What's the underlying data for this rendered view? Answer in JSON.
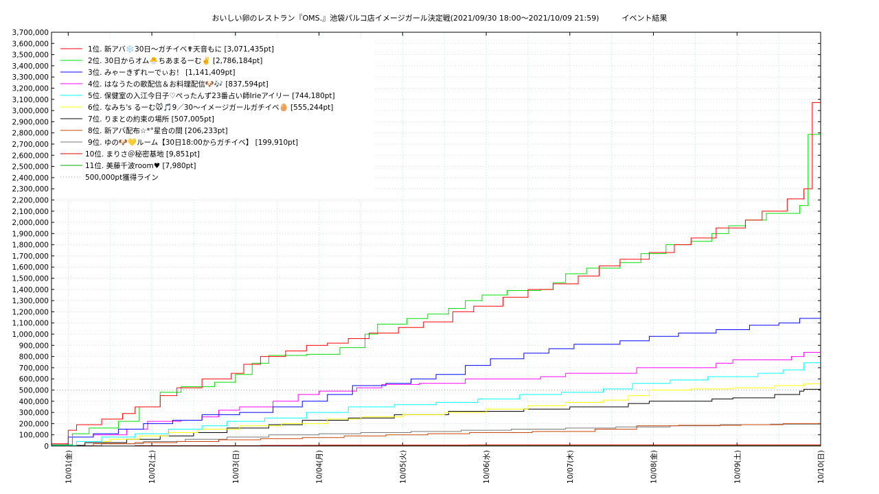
{
  "chart_data": {
    "type": "line",
    "title": "おいしい卵のレストラン『OMS.』池袋パルコ店イメージガール決定戦(2021/09/30 18:00～2021/10/09 21:59)　　　イベント結果",
    "xlabel": "",
    "ylabel": "",
    "ylim": [
      0,
      3700000
    ],
    "xlim": [
      "09/30 18:00",
      "10/10 00:00"
    ],
    "y_ticks": [
      "3,700,000",
      "3,600,000",
      "3,500,000",
      "3,400,000",
      "3,300,000",
      "3,200,000",
      "3,100,000",
      "3,000,000",
      "2,900,000",
      "2,800,000",
      "2,700,000",
      "2,600,000",
      "2,500,000",
      "2,400,000",
      "2,300,000",
      "2,200,000",
      "2,100,000",
      "2,000,000",
      "1,900,000",
      "1,800,000",
      "1,700,000",
      "1,600,000",
      "1,500,000",
      "1,400,000",
      "1,300,000",
      "1,200,000",
      "1,100,000",
      "1,000,000",
      "900,000",
      "800,000",
      "700,000",
      "600,000",
      "500,000",
      "400,000",
      "300,000",
      "200,000",
      "100,000",
      "0"
    ],
    "x_ticks": [
      "10/01(金)",
      "10/02(土)",
      "10/03(日)",
      "10/04(月)",
      "10/05(火)",
      "10/06(水)",
      "10/07(木)",
      "10/08(金)",
      "10/09(土)",
      "10/10(日)"
    ],
    "grid": true,
    "legend_position": "top-left",
    "threshold": {
      "label": "500,000pt獲得ライン",
      "value": 500000,
      "color": "#999999"
    },
    "series": [
      {
        "name": "1位. 新アバ❄️30日〜ガチイベ✟天音もに [3,071,435pt]",
        "color": "#ff0000",
        "points": [
          [
            0,
            20000
          ],
          [
            0.4,
            140000
          ],
          [
            0.6,
            190000
          ],
          [
            1.2,
            240000
          ],
          [
            1.7,
            290000
          ],
          [
            2.0,
            350000
          ],
          [
            2.6,
            450000
          ],
          [
            3.0,
            520000
          ],
          [
            3.6,
            600000
          ],
          [
            4.3,
            650000
          ],
          [
            4.6,
            730000
          ],
          [
            5.0,
            800000
          ],
          [
            5.6,
            850000
          ],
          [
            6.1,
            900000
          ],
          [
            6.6,
            920000
          ],
          [
            7.1,
            960000
          ],
          [
            7.6,
            1010000
          ],
          [
            8.3,
            1060000
          ],
          [
            8.9,
            1110000
          ],
          [
            9.6,
            1200000
          ],
          [
            10.1,
            1250000
          ],
          [
            10.8,
            1330000
          ],
          [
            11.4,
            1400000
          ],
          [
            12.0,
            1450000
          ],
          [
            12.6,
            1520000
          ],
          [
            13.1,
            1610000
          ],
          [
            13.6,
            1670000
          ],
          [
            14.3,
            1730000
          ],
          [
            14.9,
            1800000
          ],
          [
            15.3,
            1860000
          ],
          [
            15.9,
            1950000
          ],
          [
            16.6,
            2020000
          ],
          [
            17.0,
            2100000
          ],
          [
            17.6,
            2210000
          ],
          [
            18.0,
            2300000
          ],
          [
            18.2,
            3071435
          ],
          [
            18.4,
            3071435
          ]
        ]
      },
      {
        "name": "2位. 30日からオム🐣ちあまるーむ✌️ [2,786,184pt]",
        "color": "#00dd00",
        "points": [
          [
            0,
            10000
          ],
          [
            0.5,
            110000
          ],
          [
            0.9,
            160000
          ],
          [
            1.6,
            220000
          ],
          [
            2.1,
            350000
          ],
          [
            2.6,
            480000
          ],
          [
            3.1,
            530000
          ],
          [
            3.9,
            570000
          ],
          [
            4.4,
            640000
          ],
          [
            4.8,
            740000
          ],
          [
            5.2,
            810000
          ],
          [
            6.1,
            820000
          ],
          [
            6.9,
            880000
          ],
          [
            7.5,
            1000000
          ],
          [
            7.8,
            1090000
          ],
          [
            8.5,
            1140000
          ],
          [
            9.0,
            1180000
          ],
          [
            9.5,
            1230000
          ],
          [
            9.9,
            1300000
          ],
          [
            10.3,
            1350000
          ],
          [
            10.9,
            1390000
          ],
          [
            11.7,
            1400000
          ],
          [
            12.0,
            1460000
          ],
          [
            12.3,
            1540000
          ],
          [
            12.8,
            1590000
          ],
          [
            13.6,
            1640000
          ],
          [
            14.1,
            1720000
          ],
          [
            14.7,
            1800000
          ],
          [
            15.3,
            1830000
          ],
          [
            15.8,
            1900000
          ],
          [
            16.2,
            1970000
          ],
          [
            16.6,
            2020000
          ],
          [
            17.1,
            2080000
          ],
          [
            17.9,
            2150000
          ],
          [
            18.1,
            2786184
          ],
          [
            18.4,
            2786184
          ]
        ]
      },
      {
        "name": "3位. みゃーきずれーでぃお！ [1,141,409pt]",
        "color": "#0000ff",
        "points": [
          [
            0,
            10000
          ],
          [
            0.4,
            80000
          ],
          [
            1.0,
            110000
          ],
          [
            1.6,
            150000
          ],
          [
            2.2,
            200000
          ],
          [
            2.9,
            230000
          ],
          [
            3.6,
            280000
          ],
          [
            4.5,
            300000
          ],
          [
            5.3,
            350000
          ],
          [
            6.0,
            400000
          ],
          [
            6.6,
            460000
          ],
          [
            7.2,
            540000
          ],
          [
            8.0,
            560000
          ],
          [
            8.6,
            600000
          ],
          [
            9.2,
            640000
          ],
          [
            9.9,
            720000
          ],
          [
            10.5,
            780000
          ],
          [
            11.3,
            830000
          ],
          [
            11.9,
            870000
          ],
          [
            12.5,
            910000
          ],
          [
            13.6,
            940000
          ],
          [
            14.3,
            980000
          ],
          [
            15.0,
            1010000
          ],
          [
            15.9,
            1040000
          ],
          [
            16.7,
            1080000
          ],
          [
            17.4,
            1100000
          ],
          [
            17.9,
            1141409
          ],
          [
            18.4,
            1141409
          ]
        ]
      },
      {
        "name": "4位. はなうたの歌配信＆お料理配信🐶🎶 [837,594pt]",
        "color": "#ff00ff",
        "points": [
          [
            0,
            10000
          ],
          [
            0.5,
            80000
          ],
          [
            1.0,
            100000
          ],
          [
            1.8,
            150000
          ],
          [
            2.3,
            220000
          ],
          [
            3.1,
            230000
          ],
          [
            3.6,
            260000
          ],
          [
            4.0,
            320000
          ],
          [
            4.5,
            350000
          ],
          [
            5.3,
            400000
          ],
          [
            5.9,
            460000
          ],
          [
            6.4,
            490000
          ],
          [
            7.3,
            520000
          ],
          [
            7.9,
            550000
          ],
          [
            8.8,
            560000
          ],
          [
            9.9,
            600000
          ],
          [
            11.7,
            620000
          ],
          [
            12.3,
            650000
          ],
          [
            14.0,
            700000
          ],
          [
            15.9,
            740000
          ],
          [
            16.3,
            770000
          ],
          [
            17.7,
            800000
          ],
          [
            18.0,
            837594
          ],
          [
            18.4,
            837594
          ]
        ]
      },
      {
        "name": "5位. 保健室の入江今日子♡ぺったんず23番占い師Irieアイリー [744,180pt]",
        "color": "#00ffff",
        "points": [
          [
            0,
            5000
          ],
          [
            0.6,
            40000
          ],
          [
            1.2,
            80000
          ],
          [
            2.0,
            110000
          ],
          [
            2.8,
            150000
          ],
          [
            3.6,
            180000
          ],
          [
            4.2,
            220000
          ],
          [
            5.1,
            250000
          ],
          [
            6.1,
            300000
          ],
          [
            7.1,
            350000
          ],
          [
            8.2,
            370000
          ],
          [
            9.2,
            390000
          ],
          [
            10.2,
            420000
          ],
          [
            11.2,
            460000
          ],
          [
            12.2,
            480000
          ],
          [
            13.2,
            510000
          ],
          [
            13.9,
            560000
          ],
          [
            14.8,
            590000
          ],
          [
            15.7,
            620000
          ],
          [
            16.9,
            650000
          ],
          [
            17.5,
            680000
          ],
          [
            18.0,
            744180
          ],
          [
            18.4,
            744180
          ]
        ]
      },
      {
        "name": "6位. なみち's るーむ🐭🎵9／30〜イメージガールガチイベ🥚 [555,244pt]",
        "color": "#ffff00",
        "points": [
          [
            0,
            5000
          ],
          [
            0.6,
            40000
          ],
          [
            1.4,
            60000
          ],
          [
            2.1,
            90000
          ],
          [
            2.8,
            120000
          ],
          [
            3.5,
            150000
          ],
          [
            4.5,
            180000
          ],
          [
            5.5,
            200000
          ],
          [
            6.6,
            240000
          ],
          [
            7.4,
            260000
          ],
          [
            8.4,
            280000
          ],
          [
            9.4,
            300000
          ],
          [
            10.4,
            330000
          ],
          [
            11.4,
            360000
          ],
          [
            12.3,
            390000
          ],
          [
            13.2,
            410000
          ],
          [
            13.8,
            450000
          ],
          [
            14.3,
            500000
          ],
          [
            15.3,
            510000
          ],
          [
            16.3,
            520000
          ],
          [
            17.3,
            540000
          ],
          [
            18.0,
            555244
          ],
          [
            18.4,
            555244
          ]
        ]
      },
      {
        "name": "7位. りまとの約束の場所 [507,005pt]",
        "color": "#000000",
        "points": [
          [
            0,
            5000
          ],
          [
            0.8,
            30000
          ],
          [
            1.8,
            60000
          ],
          [
            2.6,
            90000
          ],
          [
            3.4,
            120000
          ],
          [
            4.2,
            160000
          ],
          [
            5.2,
            190000
          ],
          [
            6.0,
            230000
          ],
          [
            7.1,
            250000
          ],
          [
            8.2,
            280000
          ],
          [
            9.5,
            310000
          ],
          [
            11.3,
            330000
          ],
          [
            12.4,
            350000
          ],
          [
            13.8,
            380000
          ],
          [
            14.3,
            400000
          ],
          [
            15.8,
            420000
          ],
          [
            16.3,
            430000
          ],
          [
            17.3,
            460000
          ],
          [
            17.9,
            490000
          ],
          [
            18.0,
            507005
          ],
          [
            18.4,
            507005
          ]
        ]
      },
      {
        "name": "8位. 新アバ配布☆*°星合の間 [206,233pt]",
        "color": "#cc4400",
        "points": [
          [
            0,
            2000
          ],
          [
            1.0,
            20000
          ],
          [
            2.0,
            30000
          ],
          [
            3.0,
            40000
          ],
          [
            4.0,
            55000
          ],
          [
            5.0,
            65000
          ],
          [
            6.0,
            75000
          ],
          [
            7.0,
            90000
          ],
          [
            8.0,
            100000
          ],
          [
            9.0,
            110000
          ],
          [
            10.0,
            120000
          ],
          [
            11.5,
            130000
          ],
          [
            13.0,
            150000
          ],
          [
            14.0,
            180000
          ],
          [
            15.0,
            185000
          ],
          [
            16.5,
            190000
          ],
          [
            17.5,
            200000
          ],
          [
            18.4,
            206233
          ]
        ]
      },
      {
        "name": "9位. ゆの🐶💛ルーム【30日18:00からガチイベ】 [199,910pt]",
        "color": "#777777",
        "points": [
          [
            0,
            2000
          ],
          [
            1.2,
            20000
          ],
          [
            2.2,
            40000
          ],
          [
            3.2,
            60000
          ],
          [
            4.2,
            80000
          ],
          [
            5.2,
            100000
          ],
          [
            6.4,
            110000
          ],
          [
            7.4,
            120000
          ],
          [
            8.6,
            130000
          ],
          [
            9.8,
            140000
          ],
          [
            11.0,
            150000
          ],
          [
            12.3,
            160000
          ],
          [
            13.5,
            170000
          ],
          [
            14.8,
            180000
          ],
          [
            16.0,
            190000
          ],
          [
            17.2,
            195000
          ],
          [
            18.4,
            199910
          ]
        ]
      },
      {
        "name": "10位. まりさ＠秘密基地 [9,851pt]",
        "color": "#dd0000",
        "points": [
          [
            0,
            0
          ],
          [
            2.0,
            2000
          ],
          [
            5.0,
            5000
          ],
          [
            6.4,
            8000
          ],
          [
            10.0,
            9000
          ],
          [
            18.4,
            9851
          ]
        ]
      },
      {
        "name": "11位. 美藤千波room♥ [7,980pt]",
        "color": "#00aa00",
        "points": [
          [
            0,
            0
          ],
          [
            2.0,
            2000
          ],
          [
            6.0,
            6000
          ],
          [
            10.0,
            7000
          ],
          [
            18.4,
            7980
          ]
        ]
      }
    ]
  }
}
